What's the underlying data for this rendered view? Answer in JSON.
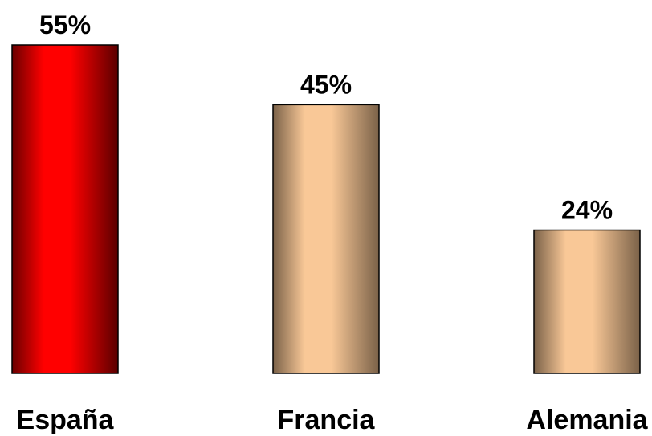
{
  "chart_data": {
    "type": "bar",
    "categories": [
      "España",
      "Francia",
      "Alemania"
    ],
    "values": [
      55,
      45,
      24
    ],
    "value_labels": [
      "55%",
      "45%",
      "24%"
    ],
    "colors": [
      "#ff0000",
      "#f9c897",
      "#f9c897"
    ],
    "title": "",
    "xlabel": "",
    "ylabel": "",
    "ylim": [
      0,
      55
    ],
    "grid": false
  }
}
